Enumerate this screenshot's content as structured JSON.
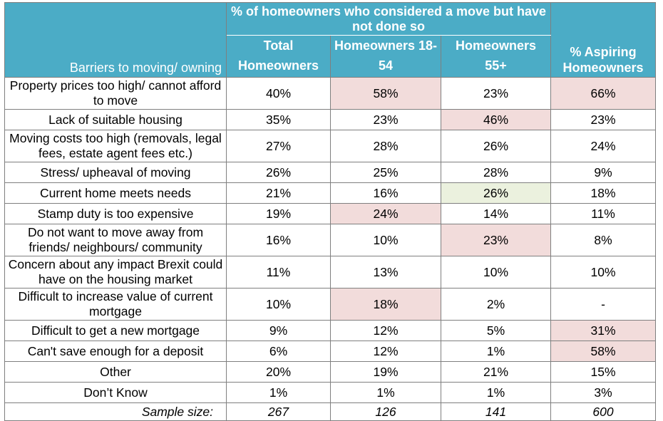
{
  "chart_data": {
    "type": "table",
    "group_header": "% of homeowners who considered a move but have not done so",
    "row_header": "Barriers to moving/ owning",
    "columns": [
      "Total Homeowners",
      "Homeowners 18-54",
      "Homeowners 55+",
      "% Aspiring Homeowners"
    ],
    "rows": [
      {
        "label": "Property prices too high/ cannot afford to move",
        "values": [
          "40%",
          "58%",
          "23%",
          "66%"
        ],
        "highlight": [
          "",
          "red",
          "",
          "red"
        ]
      },
      {
        "label": "Lack of suitable housing",
        "values": [
          "35%",
          "23%",
          "46%",
          "23%"
        ],
        "highlight": [
          "",
          "",
          "red",
          ""
        ]
      },
      {
        "label": "Moving costs too high (removals, legal fees, estate agent fees etc.)",
        "values": [
          "27%",
          "28%",
          "26%",
          "24%"
        ],
        "highlight": [
          "",
          "",
          "",
          ""
        ]
      },
      {
        "label": "Stress/ upheaval of moving",
        "values": [
          "26%",
          "25%",
          "28%",
          "9%"
        ],
        "highlight": [
          "",
          "",
          "",
          ""
        ]
      },
      {
        "label": "Current home meets needs",
        "values": [
          "21%",
          "16%",
          "26%",
          "18%"
        ],
        "highlight": [
          "",
          "",
          "green",
          ""
        ]
      },
      {
        "label": "Stamp duty is too expensive",
        "values": [
          "19%",
          "24%",
          "14%",
          "11%"
        ],
        "highlight": [
          "",
          "red",
          "",
          ""
        ]
      },
      {
        "label": "Do not want to move away from friends/ neighbours/ community",
        "values": [
          "16%",
          "10%",
          "23%",
          "8%"
        ],
        "highlight": [
          "",
          "",
          "red",
          ""
        ]
      },
      {
        "label": "Concern about any impact Brexit could have on the housing market",
        "values": [
          "11%",
          "13%",
          "10%",
          "10%"
        ],
        "highlight": [
          "",
          "",
          "",
          ""
        ]
      },
      {
        "label": "Difficult to increase value of current mortgage",
        "values": [
          "10%",
          "18%",
          "2%",
          "-"
        ],
        "highlight": [
          "",
          "red",
          "",
          ""
        ]
      },
      {
        "label": "Difficult to get a new mortgage",
        "values": [
          "9%",
          "12%",
          "5%",
          "31%"
        ],
        "highlight": [
          "",
          "",
          "",
          "red"
        ]
      },
      {
        "label": "Can't save enough for a deposit",
        "values": [
          "6%",
          "12%",
          "1%",
          "58%"
        ],
        "highlight": [
          "",
          "",
          "",
          "red"
        ]
      },
      {
        "label": "Other",
        "values": [
          "20%",
          "19%",
          "21%",
          "15%"
        ],
        "highlight": [
          "",
          "",
          "",
          ""
        ]
      },
      {
        "label": "Don’t Know",
        "values": [
          "1%",
          "1%",
          "1%",
          "3%"
        ],
        "highlight": [
          "",
          "",
          "",
          ""
        ]
      }
    ],
    "sample_size": {
      "label": "Sample size:",
      "values": [
        "267",
        "126",
        "141",
        "600"
      ]
    }
  },
  "colors": {
    "header_bg": "#4bacc6",
    "highlight_red": "#f2dcdb",
    "highlight_green": "#ebf1de"
  }
}
